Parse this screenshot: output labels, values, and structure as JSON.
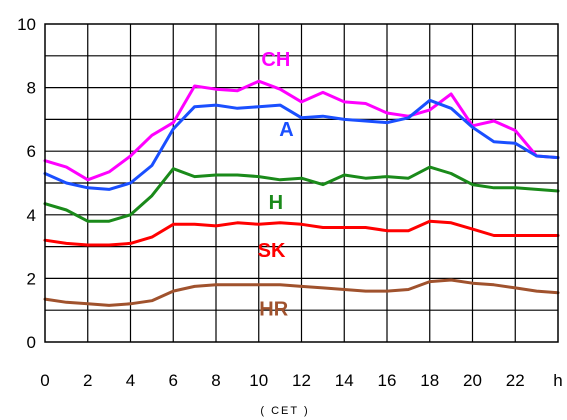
{
  "chart_data": {
    "type": "line",
    "x_unit_label": "h",
    "x_sublabel": "( CET )",
    "x_tick_labels": [
      "0",
      "2",
      "4",
      "6",
      "8",
      "10",
      "12",
      "14",
      "16",
      "18",
      "20",
      "22"
    ],
    "y_tick_labels": [
      "0",
      "2",
      "4",
      "6",
      "8",
      "10"
    ],
    "ylim": [
      0,
      10
    ],
    "xlim": [
      0,
      24
    ],
    "grid": true,
    "x": [
      0,
      1,
      2,
      3,
      4,
      5,
      6,
      7,
      8,
      9,
      10,
      11,
      12,
      13,
      14,
      15,
      16,
      17,
      18,
      19,
      20,
      21,
      22,
      23,
      24
    ],
    "series": [
      {
        "name": "CH",
        "color": "#ff00ff",
        "label_x": 10.8,
        "label_y": 8.9,
        "values": [
          5.7,
          5.5,
          5.1,
          5.35,
          5.85,
          6.5,
          6.9,
          8.05,
          7.95,
          7.9,
          8.2,
          7.95,
          7.55,
          7.85,
          7.55,
          7.5,
          7.2,
          7.1,
          7.3,
          7.8,
          6.8,
          6.95,
          6.65,
          5.85,
          5.8
        ]
      },
      {
        "name": "A",
        "color": "#1a4fff",
        "label_x": 11.3,
        "label_y": 6.7,
        "values": [
          5.3,
          5.0,
          4.85,
          4.8,
          5.0,
          5.55,
          6.7,
          7.4,
          7.45,
          7.35,
          7.4,
          7.45,
          7.05,
          7.1,
          7.0,
          6.95,
          6.9,
          7.05,
          7.6,
          7.35,
          6.75,
          6.3,
          6.25,
          5.85,
          5.8
        ]
      },
      {
        "name": "H",
        "color": "#1a8a1a",
        "label_x": 10.8,
        "label_y": 4.4,
        "values": [
          4.35,
          4.15,
          3.8,
          3.8,
          4.0,
          4.6,
          5.45,
          5.2,
          5.25,
          5.25,
          5.2,
          5.1,
          5.15,
          4.95,
          5.25,
          5.15,
          5.2,
          5.15,
          5.5,
          5.3,
          4.95,
          4.85,
          4.85,
          4.8,
          4.75
        ]
      },
      {
        "name": "SK",
        "color": "#ff0000",
        "label_x": 10.6,
        "label_y": 2.9,
        "values": [
          3.2,
          3.1,
          3.05,
          3.05,
          3.1,
          3.3,
          3.7,
          3.7,
          3.65,
          3.75,
          3.7,
          3.75,
          3.7,
          3.6,
          3.6,
          3.6,
          3.5,
          3.5,
          3.8,
          3.75,
          3.55,
          3.35,
          3.35,
          3.35,
          3.35
        ]
      },
      {
        "name": "HR",
        "color": "#a0522d",
        "label_x": 10.7,
        "label_y": 1.05,
        "values": [
          1.35,
          1.25,
          1.2,
          1.15,
          1.2,
          1.3,
          1.6,
          1.75,
          1.8,
          1.8,
          1.8,
          1.8,
          1.75,
          1.7,
          1.65,
          1.6,
          1.6,
          1.65,
          1.9,
          1.95,
          1.85,
          1.8,
          1.7,
          1.6,
          1.55
        ]
      }
    ]
  }
}
